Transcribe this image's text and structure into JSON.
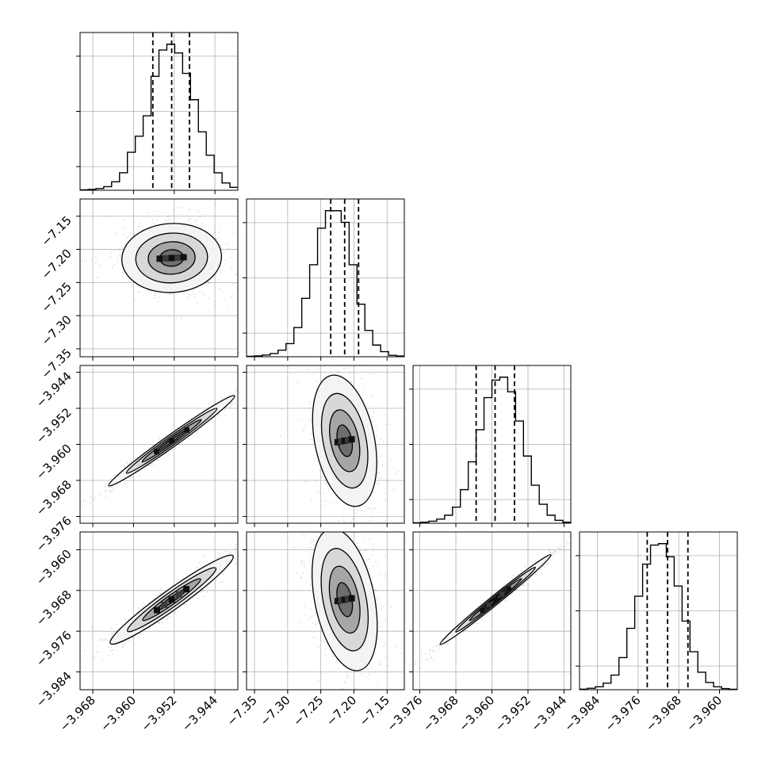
{
  "chart_data": {
    "type": "scatter",
    "title": "",
    "n_params": 4,
    "grid": true,
    "quantile_lines": "dashed",
    "axes": {
      "x": [
        {
          "ticks": [
            -3.968,
            -3.96,
            -3.952,
            -3.944
          ],
          "tick_labels": [
            "−3.968",
            "−3.960",
            "−3.952",
            "−3.944"
          ]
        },
        {
          "ticks": [
            -7.35,
            -7.3,
            -7.25,
            -7.2,
            -7.15
          ],
          "tick_labels": [
            "−7.35",
            "−7.30",
            "−7.25",
            "−7.20",
            "−7.15"
          ]
        },
        {
          "ticks": [
            -3.976,
            -3.968,
            -3.96,
            -3.952,
            -3.944
          ],
          "tick_labels": [
            "−3.976",
            "−3.968",
            "−3.960",
            "−3.952",
            "−3.944"
          ]
        },
        {
          "ticks": [
            -3.984,
            -3.976,
            -3.968,
            -3.96
          ],
          "tick_labels": [
            "−3.984",
            "−3.976",
            "−3.968",
            "−3.960"
          ]
        }
      ],
      "y": [
        {
          "ticks": [],
          "tick_labels": []
        },
        {
          "ticks": [
            -7.35,
            -7.3,
            -7.25,
            -7.2,
            -7.15
          ],
          "tick_labels": [
            "−7.35",
            "−7.30",
            "−7.25",
            "−7.20",
            "−7.15"
          ]
        },
        {
          "ticks": [
            -3.976,
            -3.968,
            -3.96,
            -3.952,
            -3.944
          ],
          "tick_labels": [
            "−3.976",
            "−3.968",
            "−3.960",
            "−3.952",
            "−3.944"
          ]
        },
        {
          "ticks": [
            -3.984,
            -3.976,
            -3.968,
            -3.96
          ],
          "tick_labels": [
            "−3.984",
            "−3.976",
            "−3.968",
            "−3.960"
          ]
        }
      ]
    },
    "ranges": [
      [
        -3.9705,
        -3.9395
      ],
      [
        -7.362,
        -7.124
      ],
      [
        -3.9775,
        -3.9425
      ],
      [
        -3.9875,
        -3.9565
      ]
    ],
    "quantiles": [
      [
        -3.9562,
        -3.9525,
        -3.949
      ],
      [
        -7.235,
        -7.214,
        -7.193
      ],
      [
        -3.9635,
        -3.9593,
        -3.955
      ],
      [
        -3.9742,
        -3.9702,
        -3.9662
      ]
    ],
    "histograms": [
      {
        "edges": [
          -3.9705,
          -3.9395
        ],
        "counts": [
          0.003,
          0.006,
          0.012,
          0.025,
          0.058,
          0.12,
          0.26,
          0.37,
          0.51,
          0.78,
          0.96,
          1.0,
          0.94,
          0.8,
          0.62,
          0.4,
          0.24,
          0.12,
          0.05,
          0.02
        ]
      },
      {
        "edges": [
          -7.362,
          -7.124
        ],
        "counts": [
          0.003,
          0.006,
          0.012,
          0.022,
          0.045,
          0.09,
          0.2,
          0.4,
          0.63,
          0.88,
          1.0,
          1.0,
          0.92,
          0.63,
          0.36,
          0.18,
          0.08,
          0.035,
          0.01,
          0.005
        ]
      },
      {
        "edges": [
          -3.9775,
          -3.9425
        ],
        "counts": [
          0.003,
          0.007,
          0.014,
          0.028,
          0.055,
          0.11,
          0.23,
          0.42,
          0.64,
          0.86,
          0.98,
          1.0,
          0.9,
          0.7,
          0.46,
          0.26,
          0.13,
          0.055,
          0.02,
          0.007
        ]
      },
      {
        "edges": [
          -3.9875,
          -3.9565
        ],
        "counts": [
          0.004,
          0.01,
          0.02,
          0.045,
          0.1,
          0.22,
          0.42,
          0.64,
          0.86,
          0.99,
          1.0,
          0.91,
          0.71,
          0.47,
          0.26,
          0.12,
          0.05,
          0.02,
          0.008,
          0.003
        ]
      }
    ],
    "pairs": [
      {
        "x": 0,
        "y": 1,
        "center": [
          -3.9525,
          -7.213
        ],
        "rx": 0.0098,
        "ry": 0.052,
        "tilt": 0.06
      },
      {
        "x": 0,
        "y": 2,
        "center": [
          -3.9525,
          -3.9592
        ],
        "rx": 0.0152,
        "ry": 0.00135,
        "tilt": 0.62
      },
      {
        "x": 1,
        "y": 2,
        "center": [
          -7.214,
          -3.9592
        ],
        "rx": 0.045,
        "ry": 0.0148,
        "tilt": 0.2
      },
      {
        "x": 0,
        "y": 3,
        "center": [
          -3.9525,
          -3.9698
        ],
        "rx": 0.0148,
        "ry": 0.00195,
        "tilt": 0.62
      },
      {
        "x": 1,
        "y": 3,
        "center": [
          -7.214,
          -3.9698
        ],
        "rx": 0.045,
        "ry": 0.0142,
        "tilt": 0.2
      },
      {
        "x": 2,
        "y": 3,
        "center": [
          -3.9592,
          -3.9698
        ],
        "rx": 0.0158,
        "ry": 0.0009,
        "tilt": 0.68
      }
    ]
  }
}
